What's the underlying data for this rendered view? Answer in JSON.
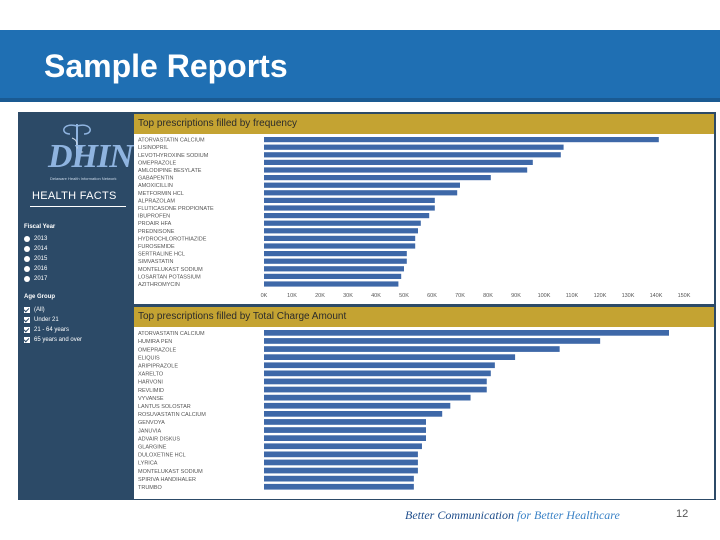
{
  "slide": {
    "title": "Sample Reports",
    "page_number": "12"
  },
  "footer": {
    "tagline_main": "Better Communication",
    "tagline_accent": " for Better Healthcare"
  },
  "sidebar": {
    "logo_text": "DHIN",
    "logo_subtitle": "Delaware Health Information Network",
    "heading": "HEALTH FACTS",
    "fiscal_year_label": "Fiscal Year",
    "fiscal_years": [
      "2013",
      "2014",
      "2015",
      "2016",
      "2017"
    ],
    "age_group_label": "Age Group",
    "age_groups": [
      "(All)",
      "Under 21",
      "21 - 64 years",
      "65 years and over"
    ]
  },
  "colors": {
    "header": "#1f6fb3",
    "panel": "#2c4a67",
    "title_bar": "#c4a332",
    "bar": "#3e68a8"
  },
  "chart_data": [
    {
      "type": "bar",
      "orientation": "horizontal",
      "title": "Top prescriptions filled by frequency",
      "categories": [
        "ATORVASTATIN CALCIUM",
        "LISINOPRIL",
        "LEVOTHYROXINE SODIUM",
        "OMEPRAZOLE",
        "AMLODIPINE BESYLATE",
        "GABAPENTIN",
        "AMOXICILLIN",
        "METFORMIN HCL",
        "ALPRAZOLAM",
        "FLUTICASONE PROPIONATE",
        "IBUPROFEN",
        "PROAIR HFA",
        "PREDNISONE",
        "HYDROCHLOROTHIAZIDE",
        "FUROSEMIDE",
        "SERTRALINE HCL",
        "SIMVASTATIN",
        "MONTELUKAST SODIUM",
        "LOSARTAN POTASSIUM",
        "AZITHROMYCIN"
      ],
      "values": [
        141000,
        107000,
        106000,
        96000,
        94000,
        81000,
        70000,
        69000,
        61000,
        61000,
        59000,
        56000,
        55000,
        54000,
        54000,
        51000,
        51000,
        50000,
        49000,
        48000
      ],
      "tick_labels": [
        "0K",
        "10K",
        "20K",
        "30K",
        "40K",
        "50K",
        "60K",
        "70K",
        "80K",
        "90K",
        "100K",
        "110K",
        "120K",
        "130K",
        "140K",
        "150K"
      ],
      "xlim": [
        0,
        150000
      ]
    },
    {
      "type": "bar",
      "orientation": "horizontal",
      "title": "Top prescriptions filled by Total Charge Amount",
      "categories": [
        "ATORVASTATIN CALCIUM",
        "HUMIRA PEN",
        "OMEPRAZOLE",
        "ELIQUIS",
        "ARIPIPRAZOLE",
        "XARELTO",
        "HARVONI",
        "REVLIMID",
        "VYVANSE",
        "LANTUS SOLOSTAR",
        "ROSUVASTATIN CALCIUM",
        "GENVOYA",
        "JANUVIA",
        "ADVAIR DISKUS",
        "GLARGINE",
        "DULOXETINE HCL",
        "LYRICA",
        "MONTELUKAST SODIUM",
        "SPIRIVA HANDIHALER",
        "TRUMBO"
      ],
      "values": [
        100,
        83,
        73,
        62,
        57,
        56,
        55,
        55,
        51,
        46,
        44,
        40,
        40,
        40,
        39,
        38,
        38,
        38,
        37,
        37
      ]
    }
  ]
}
